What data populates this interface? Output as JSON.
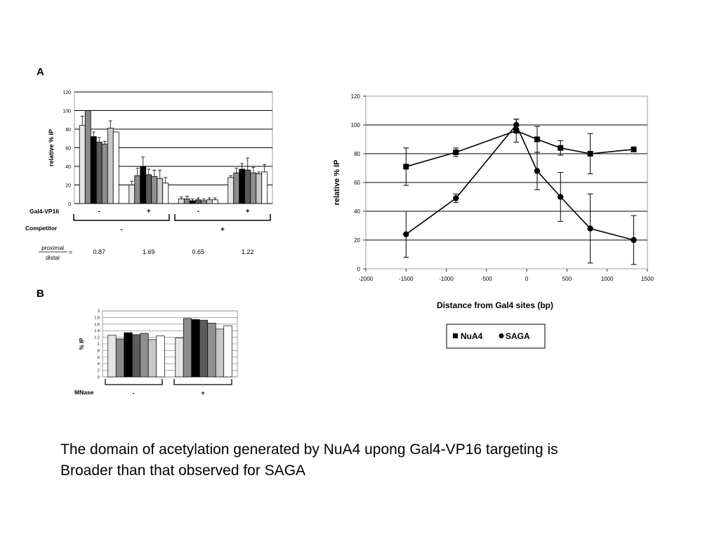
{
  "panels": {
    "a": "A",
    "b": "B"
  },
  "caption": {
    "line1": "The domain of acetylation generated by NuA4 upong Gal4-VP16 targeting is",
    "line2": "Broader than that observed for SAGA"
  },
  "chart_data": [
    {
      "type": "bar",
      "ylabel": "relative % IP",
      "ylim": [
        0,
        120
      ],
      "yticks": [
        0,
        20,
        40,
        60,
        80,
        100,
        120
      ],
      "bar_fills": [
        "#e6e6e6",
        "#8a8a8a",
        "#000000",
        "#5c5c5c",
        "#8f8f8f",
        "#c8c8c8",
        "#ffffff"
      ],
      "groups": [
        {
          "values": [
            84,
            100,
            72,
            66,
            64,
            81,
            77
          ],
          "errors": [
            10,
            0,
            5,
            5,
            3,
            8,
            0
          ]
        },
        {
          "values": [
            20,
            30,
            40,
            31,
            29,
            27,
            22
          ],
          "errors": [
            4,
            8,
            10,
            6,
            7,
            9,
            6
          ]
        },
        {
          "values": [
            5,
            5,
            3,
            4,
            3,
            4,
            4
          ],
          "errors": [
            2,
            3,
            2,
            2,
            2,
            2,
            2
          ]
        },
        {
          "values": [
            28,
            33,
            37,
            36,
            33,
            32,
            34
          ],
          "errors": [
            2,
            5,
            6,
            13,
            6,
            2,
            8
          ]
        }
      ],
      "rows": [
        {
          "label": "Gal4-VP16",
          "values": [
            "-",
            "+",
            "-",
            "+"
          ]
        },
        {
          "label": "Competitor",
          "values": [
            "-",
            "+"
          ]
        }
      ],
      "ratio_label": {
        "numerator": "proximal",
        "denominator": "distal",
        "sign": "="
      },
      "ratio_values": [
        "0.87",
        "1.69",
        "0.65",
        "1.22"
      ]
    },
    {
      "type": "line",
      "xlabel": "Distance from Gal4 sites (bp)",
      "ylabel": "relative % IP",
      "xlim": [
        -2000,
        1500
      ],
      "ylim": [
        0,
        120
      ],
      "xticks": [
        -2000,
        -1500,
        -1000,
        -500,
        0,
        500,
        1000,
        1500
      ],
      "yticks": [
        0,
        20,
        40,
        60,
        80,
        100,
        120
      ],
      "series": [
        {
          "name": "NuA4",
          "marker": "square",
          "x": [
            -1500,
            -880,
            -130,
            130,
            420,
            790,
            1330
          ],
          "y": [
            71,
            81,
            96,
            90,
            84,
            80,
            83
          ],
          "err": [
            13,
            3,
            8,
            9,
            5,
            14,
            1
          ]
        },
        {
          "name": "SAGA",
          "marker": "circle",
          "x": [
            -1500,
            -880,
            -130,
            130,
            420,
            790,
            1330
          ],
          "y": [
            24,
            49,
            100,
            68,
            50,
            28,
            20
          ],
          "err": [
            16,
            3,
            4,
            13,
            17,
            24,
            17
          ]
        }
      ],
      "legend_position": "bottom"
    },
    {
      "type": "bar",
      "ylabel": "% IP",
      "ylim": [
        0,
        2
      ],
      "yticks": [
        "0",
        ".2",
        ".4",
        ".6",
        ".8",
        "1",
        "1.2",
        "1.4",
        "1.6",
        "1.8",
        "2"
      ],
      "bar_fills": [
        "#e6e6e6",
        "#8a8a8a",
        "#000000",
        "#5c5c5c",
        "#8f8f8f",
        "#c8c8c8",
        "#ffffff"
      ],
      "groups": [
        {
          "values": [
            1.26,
            1.15,
            1.34,
            1.28,
            1.32,
            1.13,
            1.24
          ]
        },
        {
          "values": [
            1.18,
            1.77,
            1.74,
            1.72,
            1.63,
            1.45,
            1.55
          ]
        }
      ],
      "rows": [
        {
          "label": "MNase",
          "values": [
            "-",
            "+"
          ]
        }
      ]
    }
  ]
}
